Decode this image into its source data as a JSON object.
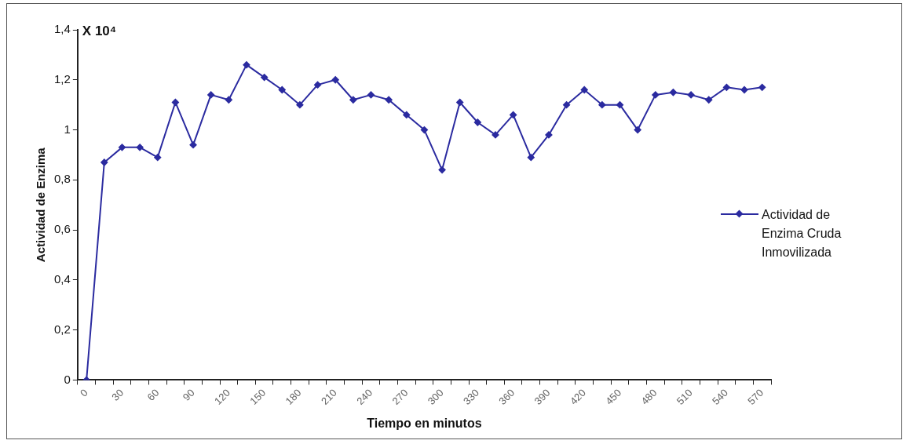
{
  "chart_data": {
    "type": "line",
    "xlabel": "Tiempo en minutos",
    "ylabel": "Actividad de Enzima",
    "annotations": [
      "X 10⁴"
    ],
    "categories": [
      "0",
      null,
      "30",
      null,
      "60",
      null,
      "90",
      null,
      "120",
      null,
      "150",
      null,
      "180",
      null,
      "210",
      null,
      "240",
      null,
      "270",
      null,
      "300",
      null,
      "330",
      null,
      "360",
      null,
      "390",
      null,
      "420",
      null,
      "450",
      null,
      "480",
      null,
      "510",
      null,
      "540",
      null,
      "570"
    ],
    "series": [
      {
        "name": "Actividad de Enzima Cruda Inmovilizada",
        "color": "#2b2ba0",
        "values": [
          0,
          0.87,
          0.93,
          0.93,
          0.89,
          1.11,
          0.94,
          1.14,
          1.12,
          1.26,
          1.21,
          1.16,
          1.1,
          1.18,
          1.2,
          1.12,
          1.14,
          1.12,
          1.06,
          1.0,
          0.84,
          1.11,
          1.03,
          0.98,
          1.06,
          0.89,
          0.98,
          1.1,
          1.16,
          1.1,
          1.1,
          1.0,
          1.14,
          1.15,
          1.14,
          1.12,
          1.17,
          1.16,
          1.17
        ]
      }
    ],
    "ylim": [
      0,
      1.4
    ],
    "yticks": [
      0,
      {
        "value": 0.2,
        "label": "0,2"
      },
      {
        "value": 0.4,
        "label": "0,4"
      },
      {
        "value": 0.6,
        "label": "0,6"
      },
      {
        "value": 0.8,
        "label": "0,8"
      },
      1,
      {
        "value": 1.2,
        "label": "1,2"
      },
      {
        "value": 1.4,
        "label": "1,4"
      }
    ],
    "grid": false,
    "legend": "right",
    "marker": "diamond",
    "line_style": "solid"
  }
}
